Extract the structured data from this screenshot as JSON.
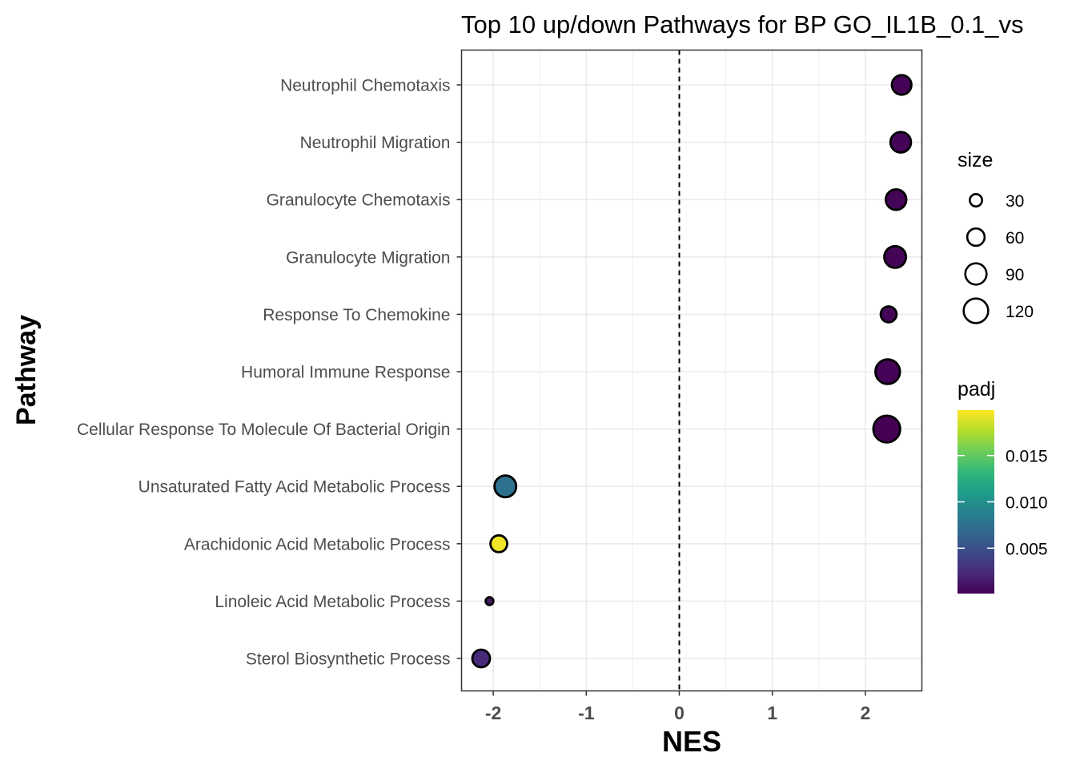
{
  "chart_data": {
    "type": "scatter",
    "title": "Top 10 up/down Pathways for BP GO_IL1B_0.1_vs",
    "xlabel": "NES",
    "ylabel": "Pathway",
    "xlim": [
      -2.35,
      2.6
    ],
    "x_ticks": [
      "-2",
      "-1",
      "0",
      "1",
      "2"
    ],
    "reference_line": {
      "x": 0,
      "style": "dashed"
    },
    "grid": true,
    "pathways": [
      {
        "name": "Neutrophil Chemotaxis",
        "nes": 2.39,
        "size": 76,
        "padj": 0.0002
      },
      {
        "name": "Neutrophil Migration",
        "nes": 2.38,
        "size": 84,
        "padj": 0.0002
      },
      {
        "name": "Granulocyte Chemotaxis",
        "nes": 2.33,
        "size": 84,
        "padj": 0.0003
      },
      {
        "name": "Granulocyte Migration",
        "nes": 2.32,
        "size": 94,
        "padj": 0.0003
      },
      {
        "name": "Response To Chemokine",
        "nes": 2.25,
        "size": 50,
        "padj": 0.0003
      },
      {
        "name": "Humoral Immune Response",
        "nes": 2.24,
        "size": 120,
        "padj": 0.0002
      },
      {
        "name": "Cellular Response To Molecule Of Bacterial Origin",
        "nes": 2.23,
        "size": 143,
        "padj": 0.0001
      },
      {
        "name": "Unsaturated Fatty Acid Metabolic Process",
        "nes": -1.87,
        "size": 94,
        "padj": 0.0075
      },
      {
        "name": "Arachidonic Acid Metabolic Process",
        "nes": -1.94,
        "size": 56,
        "padj": 0.0195
      },
      {
        "name": "Linoleic Acid Metabolic Process",
        "nes": -2.04,
        "size": 12,
        "padj": 0.0014
      },
      {
        "name": "Sterol Biosynthetic Process",
        "nes": -2.13,
        "size": 62,
        "padj": 0.0025
      }
    ],
    "size_legend": {
      "title": "size",
      "values": [
        30,
        60,
        90,
        120
      ],
      "labels": [
        "30",
        "60",
        "90",
        "120"
      ]
    },
    "color_legend": {
      "title": "padj",
      "range": [
        0.0001,
        0.0199
      ],
      "ticks": [
        0.005,
        0.01,
        0.015
      ],
      "labels": [
        "0.005",
        "0.010",
        "0.015"
      ],
      "colormap": "viridis",
      "colors": [
        "#440154",
        "#482878",
        "#3e4989",
        "#31688e",
        "#26828e",
        "#1f9e89",
        "#35b779",
        "#6ece58",
        "#b5de2b",
        "#fde725"
      ]
    },
    "colors": {
      "outline": "#000000",
      "panel_border": "#333333",
      "grid": "#ebebeb",
      "tick_text": "#4d4d4d"
    }
  }
}
